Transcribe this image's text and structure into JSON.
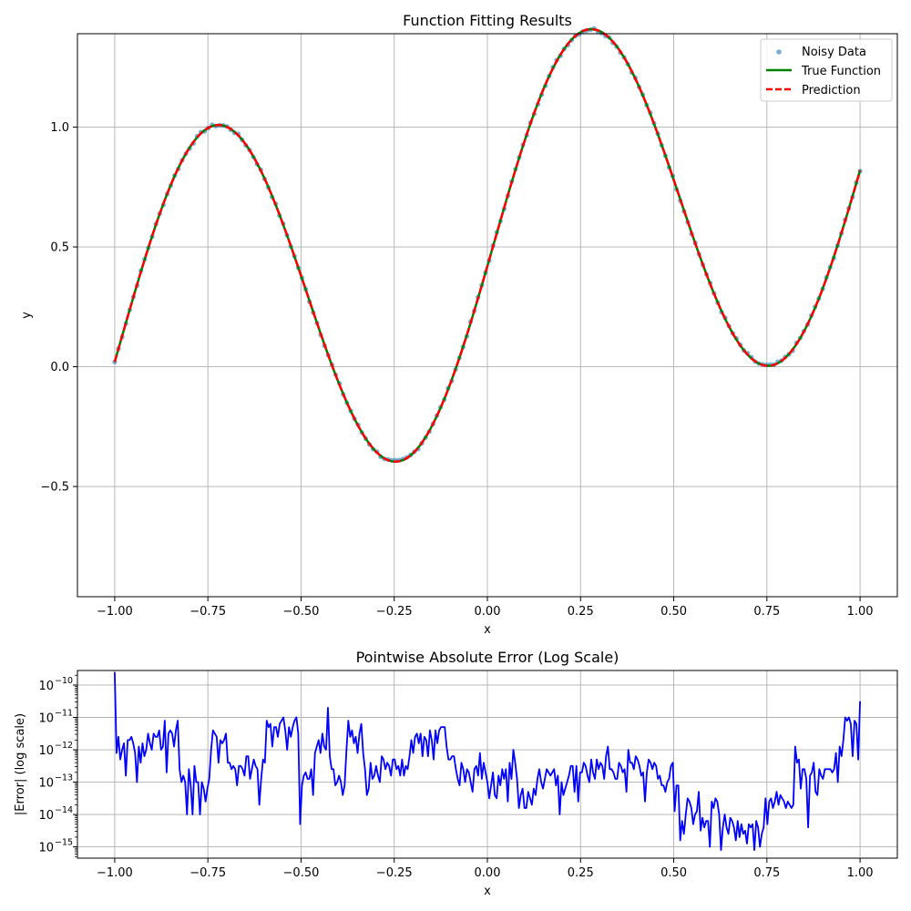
{
  "colors": {
    "noisy": "#1f77b4",
    "true_function": "#008000",
    "prediction": "#ff0000",
    "error_line": "#0000ff",
    "grid": "#b0b0b0",
    "axes": "#000000"
  },
  "chart_data": [
    {
      "type": "scatter",
      "title": "Function Fitting Results",
      "xlabel": "x",
      "ylabel": "y",
      "xlim": [
        -1.1,
        1.1
      ],
      "ylim": [
        -0.96,
        1.39
      ],
      "xticks": [
        -1.0,
        -0.75,
        -0.5,
        -0.25,
        0.0,
        0.25,
        0.5,
        0.75,
        1.0
      ],
      "xtick_labels": [
        "−1.00",
        "−0.75",
        "−0.50",
        "−0.25",
        "0.00",
        "0.25",
        "0.50",
        "0.75",
        "1.00"
      ],
      "yticks": [
        -0.5,
        0.0,
        0.5,
        1.0
      ],
      "ytick_labels": [
        "−0.5",
        "0.0",
        "0.5",
        "1.0"
      ],
      "grid": true,
      "legend_position": "top-right",
      "legend": [
        "Noisy Data",
        "True Function",
        "Prediction"
      ],
      "x_range": [
        -1.0,
        1.0
      ],
      "n_points": 200,
      "series": [
        {
          "name": "Noisy Data",
          "style": "scatter"
        },
        {
          "name": "True Function",
          "style": "solid"
        },
        {
          "name": "Prediction",
          "style": "dashed"
        }
      ]
    },
    {
      "type": "line",
      "title": "Pointwise Absolute Error (Log Scale)",
      "xlabel": "x",
      "ylabel": "|Error| (log scale)",
      "xlim": [
        -1.1,
        1.1
      ],
      "yscale": "log",
      "ylim_exp": [
        -15.35,
        -9.55
      ],
      "xticks": [
        -1.0,
        -0.75,
        -0.5,
        -0.25,
        0.0,
        0.25,
        0.5,
        0.75,
        1.0
      ],
      "xtick_labels": [
        "−1.00",
        "−0.75",
        "−0.50",
        "−0.25",
        "0.00",
        "0.25",
        "0.50",
        "0.75",
        "1.00"
      ],
      "ytick_exponents": [
        -10,
        -11,
        -12,
        -13,
        -14,
        -15
      ],
      "ytick_base": "10",
      "grid": true,
      "x_range": [
        -1.0,
        1.0
      ],
      "log10_error": [
        -9.6,
        -12.1,
        -11.6,
        -12.3,
        -12.0,
        -11.8,
        -12.8,
        -11.7,
        -11.7,
        -11.6,
        -11.8,
        -12.1,
        -13.0,
        -11.9,
        -12.4,
        -11.8,
        -12.2,
        -12.0,
        -11.5,
        -11.8,
        -12.0,
        -11.5,
        -11.6,
        -11.6,
        -11.4,
        -12.0,
        -11.9,
        -11.1,
        -12.7,
        -11.5,
        -11.4,
        -11.5,
        -11.9,
        -11.4,
        -11.1,
        -12.6,
        -13.0,
        -12.8,
        -13.0,
        -14.0,
        -12.6,
        -13.1,
        -14.0,
        -12.5,
        -13.0,
        -13.0,
        -14.0,
        -13.0,
        -13.2,
        -13.6,
        -13.2,
        -12.9,
        -12.0,
        -11.4,
        -11.5,
        -11.6,
        -12.4,
        -11.7,
        -11.8,
        -11.7,
        -11.5,
        -12.4,
        -12.4,
        -12.6,
        -12.5,
        -12.6,
        -13.1,
        -12.5,
        -12.5,
        -12.6,
        -12.8,
        -12.2,
        -12.2,
        -12.9,
        -12.6,
        -12.3,
        -12.5,
        -12.6,
        -13.7,
        -12.9,
        -12.3,
        -12.4,
        -11.1,
        -11.3,
        -11.2,
        -11.9,
        -11.3,
        -11.3,
        -11.6,
        -11.2,
        -11.1,
        -11.0,
        -11.4,
        -12.0,
        -11.3,
        -11.6,
        -11.3,
        -11.1,
        -11.0,
        -11.5,
        -14.3,
        -13.1,
        -12.8,
        -12.7,
        -12.9,
        -12.9,
        -12.6,
        -13.4,
        -12.1,
        -11.9,
        -11.7,
        -12.1,
        -11.5,
        -11.9,
        -12.0,
        -10.7,
        -12.2,
        -12.6,
        -12.6,
        -13.1,
        -13.0,
        -12.8,
        -13.0,
        -13.4,
        -13.1,
        -12.0,
        -11.1,
        -11.6,
        -11.4,
        -11.8,
        -11.6,
        -12.1,
        -11.5,
        -11.2,
        -12.1,
        -12.6,
        -13.4,
        -13.2,
        -12.4,
        -12.9,
        -12.8,
        -12.5,
        -12.8,
        -13.0,
        -12.2,
        -12.3,
        -12.6,
        -12.4,
        -12.5,
        -12.8,
        -12.3,
        -12.3,
        -12.6,
        -12.5,
        -12.8,
        -12.3,
        -12.8,
        -12.5,
        -12.6,
        -12.2,
        -11.7,
        -12.1,
        -11.6,
        -11.5,
        -11.8,
        -11.5,
        -12.2,
        -11.6,
        -11.7,
        -12.2,
        -11.4,
        -11.7,
        -12.3,
        -11.4,
        -11.8,
        -11.4,
        -11.3,
        -11.3,
        -11.3,
        -11.9,
        -12.3,
        -12.3,
        -12.2,
        -12.2,
        -12.6,
        -12.9,
        -13.1,
        -12.4,
        -12.6,
        -13.0,
        -12.6,
        -12.7,
        -13.0,
        -13.3,
        -12.6,
        -12.5,
        -12.8,
        -12.1,
        -12.9,
        -12.4,
        -12.7,
        -13.0,
        -13.5,
        -13.1,
        -12.7,
        -13.4,
        -13.5,
        -12.8,
        -13.1,
        -12.6,
        -12.9,
        -12.6,
        -13.6,
        -12.4,
        -12.9,
        -12.0,
        -12.4,
        -12.9,
        -13.8,
        -13.4,
        -13.2,
        -13.8,
        -13.8,
        -13.3,
        -13.5,
        -13.7,
        -13.2,
        -13.4,
        -12.9,
        -12.6,
        -13.0,
        -13.2,
        -12.9,
        -12.6,
        -12.7,
        -12.8,
        -12.7,
        -12.6,
        -13.1,
        -12.8,
        -14.0,
        -13.0,
        -13.4,
        -13.2,
        -13.0,
        -12.8,
        -12.5,
        -12.5,
        -13.3,
        -12.5,
        -13.6,
        -12.7,
        -12.7,
        -12.4,
        -12.5,
        -12.8,
        -13.0,
        -12.3,
        -12.7,
        -12.9,
        -12.3,
        -12.6,
        -12.4,
        -12.5,
        -12.9,
        -12.2,
        -11.9,
        -12.6,
        -12.6,
        -12.7,
        -12.9,
        -12.9,
        -12.4,
        -12.5,
        -12.7,
        -12.6,
        -13.3,
        -12.0,
        -12.4,
        -12.4,
        -12.6,
        -12.2,
        -12.3,
        -12.5,
        -12.8,
        -12.7,
        -13.6,
        -12.7,
        -12.3,
        -12.4,
        -12.6,
        -12.4,
        -12.5,
        -12.9,
        -12.8,
        -13.1,
        -13.1,
        -13.3,
        -13.0,
        -12.9,
        -12.5,
        -12.4,
        -13.9,
        -13.1,
        -13.1,
        -14.8,
        -14.2,
        -14.6,
        -14.0,
        -13.5,
        -13.6,
        -13.8,
        -14.3,
        -14.0,
        -13.9,
        -13.3,
        -14.5,
        -14.1,
        -14.4,
        -14.2,
        -14.2,
        -15.0,
        -13.6,
        -13.8,
        -13.5,
        -13.6,
        -14.0,
        -15.1,
        -14.4,
        -14.0,
        -14.4,
        -14.6,
        -14.1,
        -14.2,
        -14.4,
        -14.8,
        -14.2,
        -14.7,
        -14.3,
        -14.6,
        -14.5,
        -14.9,
        -14.3,
        -14.4,
        -14.3,
        -15.1,
        -14.2,
        -14.4,
        -15.0,
        -14.6,
        -14.4,
        -13.5,
        -14.3,
        -13.6,
        -13.5,
        -13.8,
        -13.6,
        -13.3,
        -13.7,
        -13.4,
        -13.5,
        -13.6,
        -13.8,
        -13.6,
        -13.7,
        -13.8,
        -13.7,
        -11.9,
        -12.4,
        -12.3,
        -13.2,
        -12.6,
        -12.6,
        -12.9,
        -14.4,
        -12.8,
        -12.7,
        -12.4,
        -13.3,
        -13.4,
        -12.6,
        -12.8,
        -12.9,
        -12.6,
        -12.6,
        -12.6,
        -12.6,
        -12.7,
        -12.6,
        -12.1,
        -13.0,
        -11.9,
        -12.2,
        -11.7,
        -11.0,
        -11.1,
        -11.0,
        -11.2,
        -12.2,
        -11.1,
        -11.2,
        -12.3,
        -10.5
      ],
      "noise_seed": 7
    }
  ]
}
